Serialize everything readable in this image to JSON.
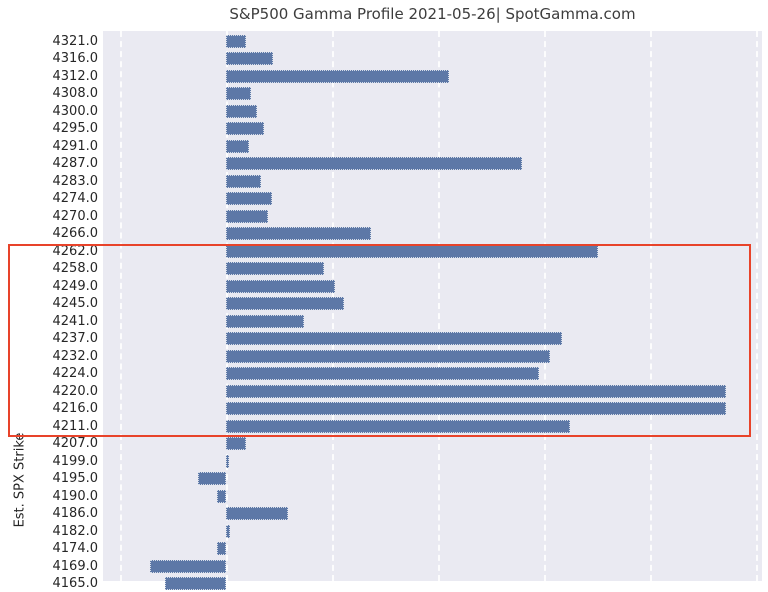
{
  "colors": {
    "bar": "#5d78a7",
    "plot_background": "#eaeaf2",
    "gridline": "#ffffff",
    "highlight_box": "#e8432a",
    "title_text": "#3d3d3d",
    "tick_text": "#262626"
  },
  "chart_data": {
    "type": "bar",
    "orientation": "horizontal",
    "title": "S&P500 Gamma Profile 2021-05-26| SpotGamma.com",
    "ylabel": "Est. SPX Strike",
    "xlabel": "",
    "x_ticks_visible": false,
    "value_units": "screen pixels (x-axis scale cropped out of image)",
    "grid": true,
    "categories": [
      "4321.0",
      "4316.0",
      "4312.0",
      "4308.0",
      "4300.0",
      "4295.0",
      "4291.0",
      "4287.0",
      "4283.0",
      "4274.0",
      "4270.0",
      "4266.0",
      "4262.0",
      "4258.0",
      "4249.0",
      "4245.0",
      "4241.0",
      "4237.0",
      "4232.0",
      "4224.0",
      "4220.0",
      "4216.0",
      "4211.0",
      "4207.0",
      "4199.0",
      "4195.0",
      "4190.0",
      "4186.0",
      "4182.0",
      "4174.0",
      "4169.0",
      "4165.0"
    ],
    "values": [
      20,
      47,
      223,
      25,
      31,
      38,
      23,
      296,
      35,
      46,
      42,
      145,
      372,
      98,
      109,
      118,
      78,
      336,
      324,
      313,
      500,
      500,
      344,
      20,
      3,
      -28,
      -9,
      62,
      4,
      -9,
      -76,
      -61
    ],
    "highlight_range": {
      "from_strike": "4262.0",
      "to_strike": "4211.0"
    }
  }
}
